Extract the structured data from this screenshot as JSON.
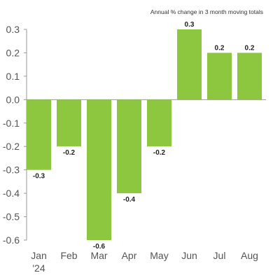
{
  "chart_data": {
    "type": "bar",
    "subtitle": "Annual % change in 3 month moving totals",
    "categories": [
      "Jan",
      "Feb",
      "Mar",
      "Apr",
      "May",
      "Jun",
      "Jul",
      "Aug"
    ],
    "category_sublabels": [
      "'24",
      "",
      "",
      "",
      "",
      "",
      "",
      ""
    ],
    "values": [
      -0.3,
      -0.2,
      -0.6,
      -0.4,
      -0.2,
      0.3,
      0.2,
      0.2
    ],
    "data_labels": [
      "-0.3",
      "-0.2",
      "-0.6",
      "-0.4",
      "-0.2",
      "0.3",
      "0.2",
      "0.2"
    ],
    "yticks": [
      0.3,
      0.2,
      0.1,
      0.0,
      -0.1,
      -0.2,
      -0.3,
      -0.4,
      -0.5,
      -0.6
    ],
    "ytick_labels": [
      "0.3",
      "0.2",
      "0.1",
      "0.0",
      "-0.1",
      "-0.2",
      "-0.3",
      "-0.4",
      "-0.5",
      "-0.6"
    ],
    "ylim": [
      -0.6,
      0.3
    ],
    "grid": false,
    "bar_color": "#8dc63f",
    "axis_color": "#999999"
  }
}
